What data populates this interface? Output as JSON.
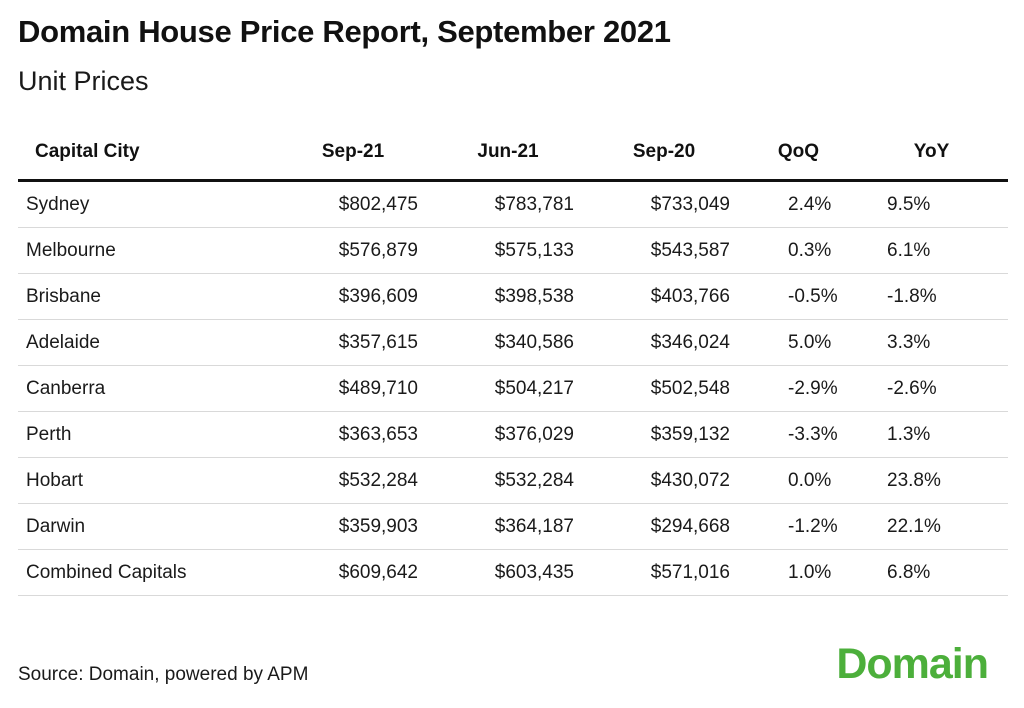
{
  "title": "Domain House Price Report, September 2021",
  "subtitle": "Unit Prices",
  "source": "Source: Domain, powered by APM",
  "logo_text": "Domain",
  "colors": {
    "brand_green": "#4caf3b",
    "header_rule": "#111111",
    "row_rule": "#d9d9d9"
  },
  "chart_data": {
    "type": "table",
    "title": "Domain House Price Report, September 2021",
    "subtitle": "Unit Prices",
    "columns": [
      "Capital City",
      "Sep-21",
      "Jun-21",
      "Sep-20",
      "QoQ",
      "YoY"
    ],
    "rows": [
      {
        "city": "Sydney",
        "sep21": "$802,475",
        "jun21": "$783,781",
        "sep20": "$733,049",
        "qoq": "2.4%",
        "yoy": "9.5%"
      },
      {
        "city": "Melbourne",
        "sep21": "$576,879",
        "jun21": "$575,133",
        "sep20": "$543,587",
        "qoq": "0.3%",
        "yoy": "6.1%"
      },
      {
        "city": "Brisbane",
        "sep21": "$396,609",
        "jun21": "$398,538",
        "sep20": "$403,766",
        "qoq": "-0.5%",
        "yoy": "-1.8%"
      },
      {
        "city": "Adelaide",
        "sep21": "$357,615",
        "jun21": "$340,586",
        "sep20": "$346,024",
        "qoq": "5.0%",
        "yoy": "3.3%"
      },
      {
        "city": "Canberra",
        "sep21": "$489,710",
        "jun21": "$504,217",
        "sep20": "$502,548",
        "qoq": "-2.9%",
        "yoy": "-2.6%"
      },
      {
        "city": "Perth",
        "sep21": "$363,653",
        "jun21": "$376,029",
        "sep20": "$359,132",
        "qoq": "-3.3%",
        "yoy": "1.3%"
      },
      {
        "city": "Hobart",
        "sep21": "$532,284",
        "jun21": "$532,284",
        "sep20": "$430,072",
        "qoq": "0.0%",
        "yoy": "23.8%"
      },
      {
        "city": "Darwin",
        "sep21": "$359,903",
        "jun21": "$364,187",
        "sep20": "$294,668",
        "qoq": "-1.2%",
        "yoy": "22.1%"
      },
      {
        "city": "Combined Capitals",
        "sep21": "$609,642",
        "jun21": "$603,435",
        "sep20": "$571,016",
        "qoq": "1.0%",
        "yoy": "6.8%"
      }
    ]
  }
}
